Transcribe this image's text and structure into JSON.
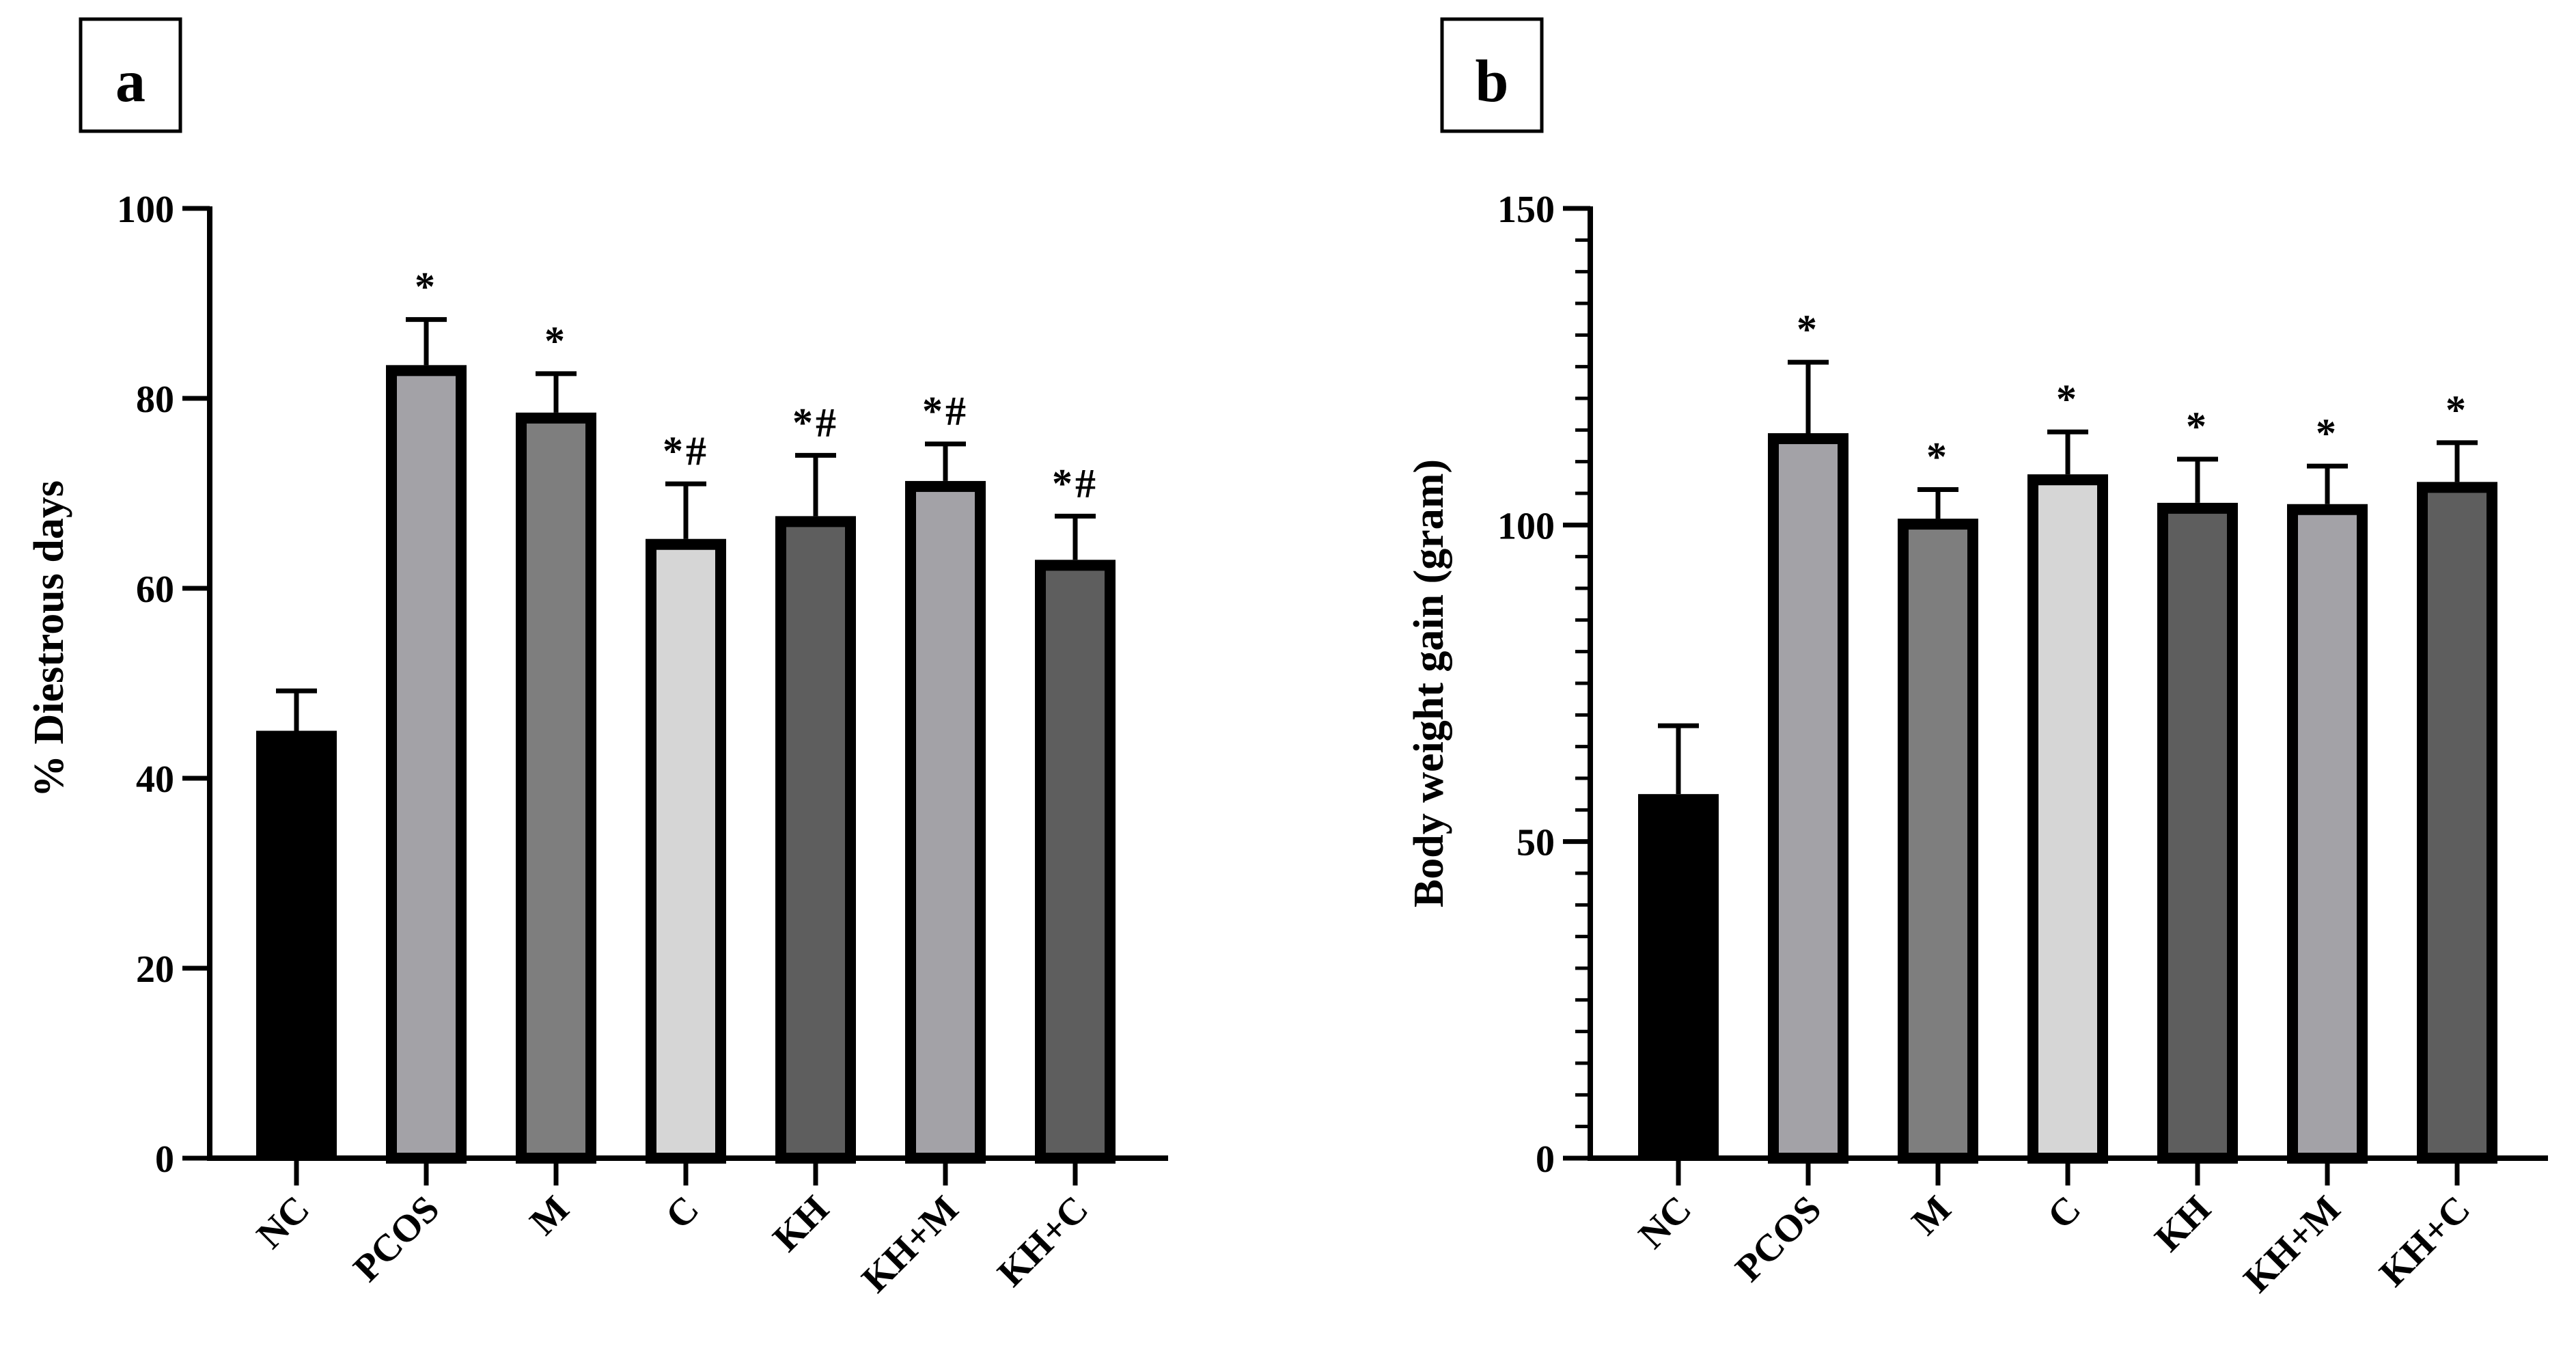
{
  "chart_data": [
    {
      "panel_label": "a",
      "type": "bar",
      "title": "",
      "xlabel": "",
      "ylabel": "% Diestrous days",
      "ylim": [
        0,
        100
      ],
      "ytick_values": [
        0,
        20,
        40,
        60,
        80,
        100
      ],
      "ytick_labels": [
        "0",
        "20",
        "40",
        "60",
        "80",
        "100"
      ],
      "minor_ticks": false,
      "grid": false,
      "legend": "none",
      "categories": [
        "NC",
        "PCOS",
        "M",
        "C",
        "KH",
        "KH+M",
        "KH+C"
      ],
      "values": [
        45,
        83.5,
        78.5,
        65.2,
        67.6,
        71.3,
        63
      ],
      "errors": [
        4.2,
        4.8,
        4.1,
        5.8,
        6.4,
        3.9,
        4.6
      ],
      "annotations": [
        "",
        "*",
        "*",
        "*#",
        "*#",
        "*#",
        "*#"
      ],
      "colors": [
        "#000000",
        "#a3a2a7",
        "#7e7e7e",
        "#d6d6d6",
        "#5e5e5e",
        "#a3a2a7",
        "#5e5e5e"
      ]
    },
    {
      "panel_label": "b",
      "type": "bar",
      "title": "",
      "xlabel": "",
      "ylabel": "Body weight gain (gram)",
      "ylim": [
        0,
        150
      ],
      "ytick_values": [
        0,
        50,
        100,
        150
      ],
      "ytick_labels": [
        "0",
        "50",
        "100",
        "150"
      ],
      "minor_ticks": true,
      "minor_step": 5,
      "grid": false,
      "legend": "none",
      "categories": [
        "NC",
        "PCOS",
        "M",
        "C",
        "KH",
        "KH+M",
        "KH+C"
      ],
      "values": [
        57.5,
        114.5,
        101,
        108,
        103.5,
        103.3,
        106.8
      ],
      "errors": [
        10.8,
        11.2,
        4.6,
        6.7,
        6.9,
        6,
        6.2
      ],
      "annotations": [
        "",
        "*",
        "*",
        "*",
        "*",
        "*",
        "*"
      ],
      "colors": [
        "#000000",
        "#a3a2a7",
        "#7e7e7e",
        "#d6d6d6",
        "#5e5e5e",
        "#a3a2a7",
        "#5e5e5e"
      ]
    }
  ]
}
